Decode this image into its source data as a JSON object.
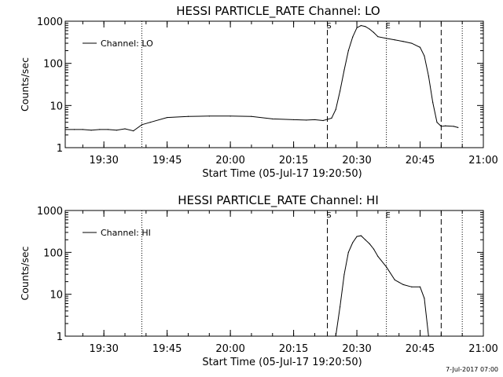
{
  "footer": {
    "timestamp": "7-Jul-2017 07:00"
  },
  "chart_data": [
    {
      "type": "line",
      "title": "HESSI PARTICLE_RATE Channel: LO",
      "xlabel": "Start Time (05-Jul-17 19:20:50)",
      "ylabel": "Counts/sec",
      "yscale": "log",
      "ylim": [
        1,
        1000
      ],
      "xlim": [
        "19:20:50",
        "21:00:00"
      ],
      "x_ticks": [
        "19:30",
        "19:45",
        "20:00",
        "20:15",
        "20:30",
        "20:45",
        "21:00"
      ],
      "y_ticks": [
        "1",
        "10",
        "100",
        "1000"
      ],
      "legend": {
        "label": "Channel: LO",
        "position": "upper-left"
      },
      "vlines": [
        {
          "x": "19:39",
          "style": "dotted"
        },
        {
          "x": "20:23",
          "style": "dashed",
          "label": "S"
        },
        {
          "x": "20:37",
          "style": "dotted",
          "label": "E"
        },
        {
          "x": "20:50",
          "style": "dashed"
        },
        {
          "x": "20:55",
          "style": "dotted"
        }
      ],
      "series": [
        {
          "name": "Channel: LO",
          "x": [
            "19:20:50",
            "19:23",
            "19:25",
            "19:27",
            "19:29",
            "19:31",
            "19:33",
            "19:35",
            "19:37",
            "19:39",
            "19:41",
            "19:45",
            "19:50",
            "19:55",
            "20:00",
            "20:05",
            "20:10",
            "20:15",
            "20:18",
            "20:20",
            "20:22",
            "20:24",
            "20:25",
            "20:26",
            "20:27",
            "20:28",
            "20:29",
            "20:30",
            "20:31",
            "20:32",
            "20:33",
            "20:34",
            "20:35",
            "20:37",
            "20:39",
            "20:41",
            "20:43",
            "20:45",
            "20:46",
            "20:47",
            "20:48",
            "20:49",
            "20:50",
            "20:51",
            "20:53",
            "20:54"
          ],
          "y": [
            2.7,
            2.7,
            2.7,
            2.6,
            2.7,
            2.7,
            2.6,
            2.8,
            2.5,
            3.5,
            4.0,
            5.2,
            5.5,
            5.6,
            5.6,
            5.5,
            4.8,
            4.6,
            4.5,
            4.6,
            4.4,
            5.0,
            8,
            22,
            70,
            200,
            420,
            700,
            790,
            750,
            650,
            540,
            430,
            390,
            360,
            330,
            300,
            240,
            150,
            50,
            12,
            4,
            3.2,
            3.3,
            3.2,
            3.0
          ]
        }
      ]
    },
    {
      "type": "line",
      "title": "HESSI PARTICLE_RATE Channel: HI",
      "xlabel": "Start Time (05-Jul-17 19:20:50)",
      "ylabel": "Counts/sec",
      "yscale": "log",
      "ylim": [
        1,
        1000
      ],
      "xlim": [
        "19:20:50",
        "21:00:00"
      ],
      "x_ticks": [
        "19:30",
        "19:45",
        "20:00",
        "20:15",
        "20:30",
        "20:45",
        "21:00"
      ],
      "y_ticks": [
        "1",
        "10",
        "100",
        "1000"
      ],
      "legend": {
        "label": "Channel: HI",
        "position": "upper-left"
      },
      "vlines": [
        {
          "x": "19:39",
          "style": "dotted"
        },
        {
          "x": "20:23",
          "style": "dashed",
          "label": "S"
        },
        {
          "x": "20:37",
          "style": "dotted",
          "label": "E"
        },
        {
          "x": "20:50",
          "style": "dashed"
        },
        {
          "x": "20:55",
          "style": "dotted"
        }
      ],
      "series": [
        {
          "name": "Channel: HI",
          "x": [
            "20:25",
            "20:26",
            "20:27",
            "20:28",
            "20:29",
            "20:30",
            "20:31",
            "20:32",
            "20:33",
            "20:34",
            "20:35",
            "20:37",
            "20:39",
            "20:41",
            "20:43",
            "20:45",
            "20:46",
            "20:47"
          ],
          "y": [
            1.0,
            5,
            30,
            100,
            170,
            240,
            250,
            200,
            160,
            120,
            80,
            45,
            22,
            17,
            15,
            15,
            8,
            1.0
          ]
        }
      ]
    }
  ]
}
